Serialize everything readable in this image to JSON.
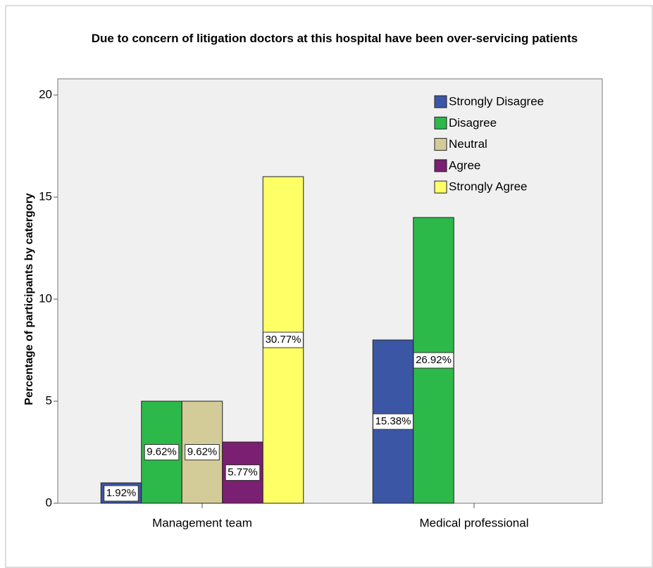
{
  "chart_data": {
    "type": "bar",
    "title": "Due to concern of litigation doctors at this hospital have been over-servicing patients",
    "y_label": "Percentage of participants by catergory",
    "categories": [
      "Management team",
      "Medical professional"
    ],
    "series": [
      {
        "name": "Strongly Disagree",
        "color": "#3c56a6",
        "values": [
          1,
          8
        ],
        "value_labels": [
          "1.92%",
          "15.38%"
        ]
      },
      {
        "name": "Disagree",
        "color": "#2db84a",
        "values": [
          5,
          14
        ],
        "value_labels": [
          "9.62%",
          "26.92%"
        ]
      },
      {
        "name": "Neutral",
        "color": "#d4cc98",
        "values": [
          5,
          null
        ],
        "value_labels": [
          "9.62%",
          null
        ]
      },
      {
        "name": "Agree",
        "color": "#7a1f72",
        "values": [
          3,
          null
        ],
        "value_labels": [
          "5.77%",
          null
        ]
      },
      {
        "name": "Strongly Agree",
        "color": "#ffff66",
        "values": [
          16,
          null
        ],
        "value_labels": [
          "30.77%",
          null
        ]
      }
    ],
    "ylim": [
      0,
      20
    ],
    "yticks": [
      0,
      5,
      10,
      15,
      20
    ],
    "legend": "top-right"
  }
}
